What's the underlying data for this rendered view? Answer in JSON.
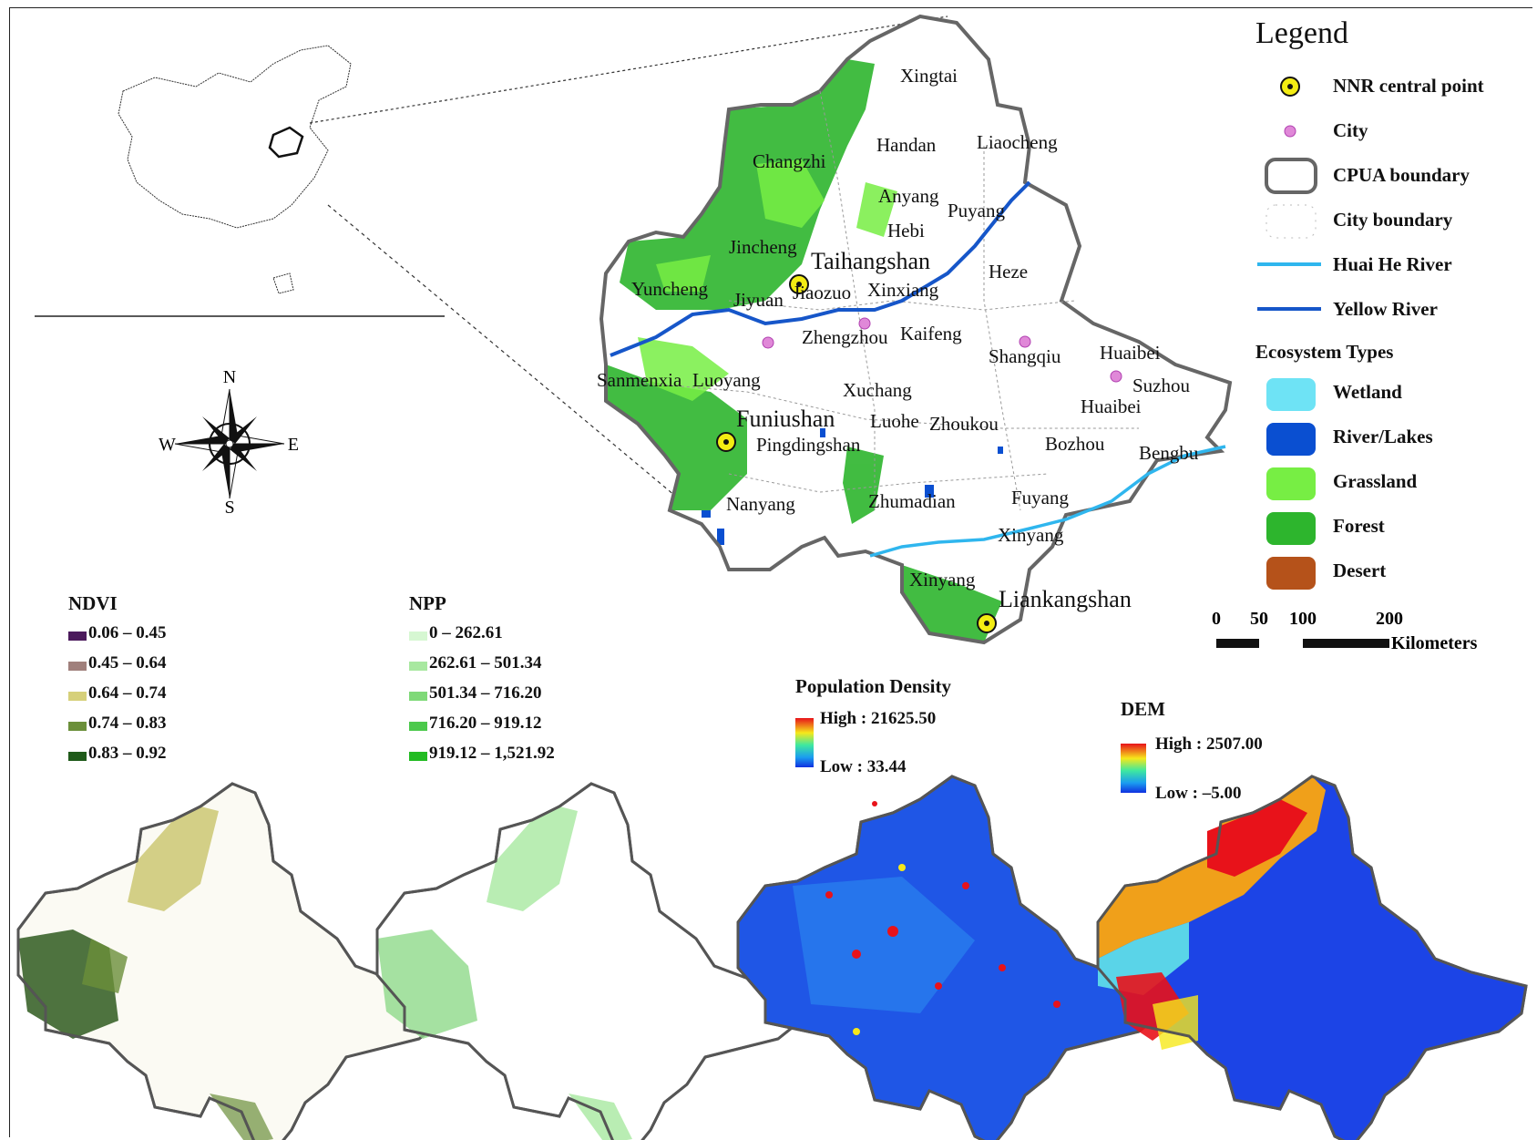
{
  "legend": {
    "title": "Legend",
    "nnr_label": "NNR central point",
    "city_label": "City",
    "cpua_label": "CPUA boundary",
    "cityb_label": "City boundary",
    "huai_label": "Huai He River",
    "yellow_label": "Yellow River",
    "eco_title": "Ecosystem Types",
    "eco": [
      {
        "label": "Wetland",
        "color": "#6ee3f5"
      },
      {
        "label": "River/Lakes",
        "color": "#0a4fd1"
      },
      {
        "label": "Grassland",
        "color": "#77ee44"
      },
      {
        "label": "Forest",
        "color": "#2db52d"
      },
      {
        "label": "Desert",
        "color": "#b5521a"
      }
    ]
  },
  "scale": {
    "ticks": [
      "0",
      "50",
      "100",
      "200"
    ],
    "unit": "Kilometers"
  },
  "compass": {
    "n": "N",
    "s": "S",
    "e": "E",
    "w": "W"
  },
  "places": {
    "xingtai": "Xingtai",
    "changzhi": "Changzhi",
    "handan": "Handan",
    "liaocheng": "Liaocheng",
    "anyang": "Anyang",
    "puyang": "Puyang",
    "hebi": "Hebi",
    "jincheng": "Jincheng",
    "taihangshan": "Taihangshan",
    "heze": "Heze",
    "yuncheng": "Yuncheng",
    "jiyuan": "Jiyuan",
    "jiaozuo": "Jiaozuo",
    "xinxiang": "Xinxiang",
    "zhengzhou": "Zhengzhou",
    "kaifeng": "Kaifeng",
    "shangqiu": "Shangqiu",
    "huaibei_top": "Huaibei",
    "suzhou": "Suzhou",
    "sanmenxia": "Sanmenxia",
    "luoyang": "Luoyang",
    "xuchang": "Xuchang",
    "huaibei": "Huaibei",
    "funiushan": "Funiushan",
    "luohe": "Luohe",
    "zhoukou": "Zhoukou",
    "pingdingshan": "Pingdingshan",
    "bozhou": "Bozhou",
    "bengbu": "Bengbu",
    "nanyang": "Nanyang",
    "zhumadian": "Zhumadian",
    "fuyang": "Fuyang",
    "xinyang_r": "Xinyang",
    "xinyang": "Xinyang",
    "liankangshan": "Liankangshan"
  },
  "ndvi": {
    "title": "NDVI",
    "classes": [
      {
        "label": "0.06 – 0.45",
        "color": "#4b1a5c"
      },
      {
        "label": "0.45 – 0.64",
        "color": "#a0807c"
      },
      {
        "label": "0.64 – 0.74",
        "color": "#d6d07a"
      },
      {
        "label": "0.74 – 0.83",
        "color": "#6b8f3a"
      },
      {
        "label": "0.83 – 0.92",
        "color": "#1f5a1a"
      }
    ]
  },
  "npp": {
    "title": "NPP",
    "classes": [
      {
        "label": "0 – 262.61",
        "color": "#d6f7d2"
      },
      {
        "label": "262.61 – 501.34",
        "color": "#a8e8a0"
      },
      {
        "label": "501.34 – 716.20",
        "color": "#7fd978"
      },
      {
        "label": "716.20 – 919.12",
        "color": "#4cc94c"
      },
      {
        "label": "919.12 – 1,521.92",
        "color": "#22bb22"
      }
    ]
  },
  "population": {
    "title": "Population Density",
    "high": "High : 21625.50",
    "low": "Low : 33.44"
  },
  "dem": {
    "title": "DEM",
    "high": "High : 2507.00",
    "low": "Low : –5.00"
  }
}
